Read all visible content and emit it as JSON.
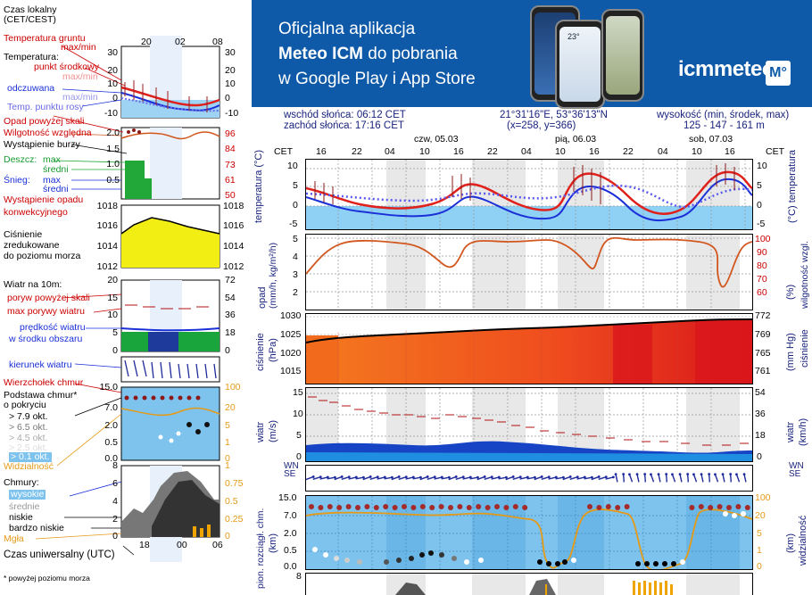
{
  "legend": {
    "time_local": "Czas lokalny",
    "time_local_sub": "(CET/CEST)",
    "top_hours": [
      "20",
      "02",
      "08"
    ],
    "ground_temp": "Temperatura gruntu",
    "ground_temp_sub": "max/min",
    "temperature": "Temperatura:",
    "mid_point": "punkt środkowy",
    "max_min_1": "max/min",
    "feels_like": "odczuwana",
    "max_min_2": "max/min",
    "dew_point": "Temp. punktu rosy",
    "temp_ticks_left": [
      "30",
      "20",
      "10",
      "0",
      "-10"
    ],
    "temp_ticks_right": [
      "30",
      "20",
      "10",
      "0",
      "-10"
    ],
    "precip_above": "Opad powyżej skali",
    "humidity": "Wilgotność względna",
    "storm": "Wystąpienie burzy",
    "rain": "Deszcz:",
    "rain_max": "max",
    "rain_mid": "średni",
    "snow": "Śnieg:",
    "snow_max": "max",
    "snow_mid": "średni",
    "precip_occurrence": "Wystąpienie opadu",
    "convective": "konwekcyjnego",
    "precip_ticks_left": [
      "2.0",
      "1.5",
      "1.0",
      "0.5"
    ],
    "hum_ticks_right": [
      "96",
      "84",
      "73",
      "61",
      "50"
    ],
    "pressure_ticks": [
      "1018",
      "1016",
      "1014",
      "1012"
    ],
    "pressure_label_1": "Ciśnienie",
    "pressure_label_2": "zredukowane",
    "pressure_label_3": "do poziomu morza",
    "wind_at": "Wiatr na 10m:",
    "gust_above": "poryw powyżej skali",
    "max_gusts": "max porywy wiatru",
    "wind_speed": "prędkość wiatru",
    "wind_mid_area": "w środku obszaru",
    "wind_ticks_left": [
      "20",
      "15",
      "10",
      "5",
      "0"
    ],
    "wind_ticks_right": [
      "72",
      "54",
      "36",
      "18",
      "0"
    ],
    "wind_dir": "kierunek wiatru",
    "cloud_top": "Wierzchołek chmur",
    "cloud_base": "Podstawa chmur*",
    "cover": "o pokryciu",
    "okt_79": "> 7.9 okt.",
    "okt_65": "> 6.5 okt.",
    "okt_45": "> 4.5 okt.",
    "okt_25": "> 2.5 okt.",
    "okt_01": "> 0.1 okt.",
    "cloud_ticks_left": [
      "15.0",
      "7.0",
      "2.0",
      "0.5",
      "0.0"
    ],
    "cloud_ticks_right": [
      "100",
      "20",
      "5",
      "1",
      "0"
    ],
    "visibility": "Widzialność",
    "clouds": "Chmury:",
    "cl_high": "wysokie",
    "cl_mid": "średnie",
    "cl_low": "niskie",
    "cl_vlow": "bardzo niskie",
    "fog": "Mgła",
    "cl_ticks_left": [
      "8",
      "6",
      "4",
      "2",
      "0"
    ],
    "cl_ticks_right": [
      "1",
      "0.75",
      "0.5",
      "0.25",
      "0"
    ],
    "utc_label": "Czas uniwersalny (UTC)",
    "utc_hours": [
      "18",
      "00",
      "06"
    ],
    "footnote": "* powyżej poziomu morza"
  },
  "banner": {
    "line1": "Oficjalna aplikacja",
    "line2a": "Meteo ICM",
    "line2b": " do pobrania",
    "line3": "w Google Play i App Store",
    "brand": "icmmeteo",
    "badge": "M°",
    "phone_temp": "23°"
  },
  "info": {
    "sunrise": "wschód słońca: 06:12 CET",
    "sunset": "zachód słońca: 17:16 CET",
    "coords": "21°31'16\"E, 53°36'13\"N",
    "grid": "(x=258,  y=366)",
    "height_label": "wysokość (min, środek, max)",
    "height_values": "125 - 147 - 161 m"
  },
  "axis": {
    "tz": "CET",
    "days": [
      "czw, 05.03",
      "pią, 06.03",
      "sob, 07.03"
    ],
    "hours": [
      "16",
      "22",
      "04",
      "10",
      "16",
      "22",
      "04",
      "10",
      "16",
      "22",
      "04",
      "10",
      "16"
    ]
  },
  "panels": {
    "temp": {
      "left": "temperatura",
      "left_unit": "(°C)",
      "right": "temperatura",
      "right_unit": "(°C)",
      "ticks": [
        "10",
        "5",
        "0",
        "-5"
      ],
      "ticks_r": [
        "10",
        "5",
        "0",
        "-5"
      ]
    },
    "precip": {
      "left": "opad",
      "left_unit": "(mm/h, kg/m²/h)",
      "right": "wilgotność wzgl.",
      "right_unit": "(%)",
      "ticks": [
        "5",
        "4",
        "3",
        "2"
      ],
      "ticks_r": [
        "100",
        "90",
        "80",
        "70",
        "60"
      ]
    },
    "pressure": {
      "left": "ciśnienie",
      "left_unit": "(hPa)",
      "right": "ciśnienie",
      "right_unit": "(mm Hg)",
      "ticks": [
        "1030",
        "1025",
        "1020",
        "1015"
      ],
      "ticks_r": [
        "772",
        "769",
        "765",
        "761"
      ]
    },
    "wind": {
      "left": "wiatr",
      "left_unit": "(m/s)",
      "right": "wiatr",
      "right_unit": "(km/h)",
      "ticks": [
        "15",
        "10",
        "5",
        "0"
      ],
      "ticks_r": [
        "54",
        "36",
        "18",
        "0"
      ]
    },
    "dir": {
      "left_top": "N",
      "left_a": "W",
      "left_b": "E",
      "left_c": "S"
    },
    "cloud": {
      "left": "pion. rozciągł. chm.",
      "left_unit": "(km)",
      "right": "widzialność",
      "right_unit": "(km)",
      "ticks": [
        "15.0",
        "7.0",
        "2.0",
        "0.5",
        "0.0"
      ],
      "ticks_r": [
        "100",
        "20",
        "5",
        "1",
        "0"
      ]
    },
    "bottom": {
      "tick": "8"
    }
  },
  "colors": {
    "banner": "#0f5aa8",
    "temp_red": "#e0201b",
    "temp_blue": "#1a2fd8",
    "dew_violet": "#6a6ae8",
    "humidity": "#d2571e",
    "pressure_fill_low": "#f26b1d",
    "pressure_fill_high": "#d9161b",
    "wind_blue": "#1744c5",
    "gust_red": "#b01010",
    "cloud_sky": "#7ec3ee",
    "visibility": "#e59a17"
  }
}
